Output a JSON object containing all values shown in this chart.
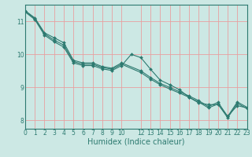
{
  "title": "",
  "xlabel": "Humidex (Indice chaleur)",
  "ylabel": "",
  "background_color": "#cce8e4",
  "line_color": "#2d7a70",
  "grid_color": "#e8a0a0",
  "series": [
    {
      "x": [
        0,
        1,
        2,
        3,
        4,
        5,
        6,
        7,
        8,
        9,
        10,
        12,
        13,
        14,
        15,
        16,
        17,
        18,
        19,
        20,
        21,
        22,
        23
      ],
      "y": [
        11.32,
        11.1,
        10.65,
        10.5,
        10.35,
        9.82,
        9.74,
        9.74,
        9.63,
        9.58,
        9.74,
        9.5,
        9.3,
        9.12,
        9.0,
        8.87,
        8.74,
        8.6,
        8.42,
        8.55,
        8.12,
        8.56,
        8.4
      ]
    },
    {
      "x": [
        0,
        1,
        2,
        3,
        4,
        5,
        6,
        7,
        8,
        9,
        10,
        12,
        13,
        14,
        15,
        16,
        17,
        18,
        19,
        20,
        21,
        22,
        23
      ],
      "y": [
        11.3,
        11.08,
        10.62,
        10.43,
        10.28,
        9.78,
        9.7,
        9.7,
        9.6,
        9.55,
        9.7,
        9.45,
        9.25,
        9.08,
        8.95,
        8.83,
        8.7,
        8.56,
        8.38,
        8.5,
        8.08,
        8.52,
        8.36
      ]
    },
    {
      "x": [
        0,
        1,
        2,
        3,
        4,
        5,
        6,
        7,
        8,
        9,
        10,
        11,
        12,
        13,
        14,
        15,
        16,
        17,
        18,
        19,
        20,
        21,
        22,
        23
      ],
      "y": [
        11.28,
        11.05,
        10.58,
        10.38,
        10.22,
        9.74,
        9.66,
        9.66,
        9.56,
        9.51,
        9.66,
        10.0,
        9.9,
        9.55,
        9.22,
        9.08,
        8.93,
        8.7,
        8.53,
        8.48,
        8.48,
        8.13,
        8.45,
        8.38
      ]
    }
  ],
  "xlim": [
    0,
    23
  ],
  "ylim": [
    7.75,
    11.5
  ],
  "yticks": [
    8,
    9,
    10,
    11
  ],
  "xtick_positions": [
    0,
    1,
    2,
    3,
    4,
    5,
    6,
    7,
    8,
    9,
    10,
    12,
    13,
    14,
    15,
    16,
    17,
    18,
    19,
    20,
    21,
    22,
    23
  ],
  "xtick_labels": [
    "0",
    "1",
    "2",
    "3",
    "4",
    "5",
    "6",
    "7",
    "8",
    "9",
    "10",
    "12",
    "13",
    "14",
    "15",
    "16",
    "17",
    "18",
    "19",
    "20",
    "21",
    "22",
    "23"
  ],
  "grid_xticks": [
    0,
    1,
    2,
    3,
    4,
    5,
    6,
    7,
    8,
    9,
    10,
    11,
    12,
    13,
    14,
    15,
    16,
    17,
    18,
    19,
    20,
    21,
    22,
    23
  ],
  "marker": "D",
  "markersize": 2.0,
  "linewidth": 0.8,
  "tick_fontsize": 5.5,
  "label_fontsize": 7.0
}
